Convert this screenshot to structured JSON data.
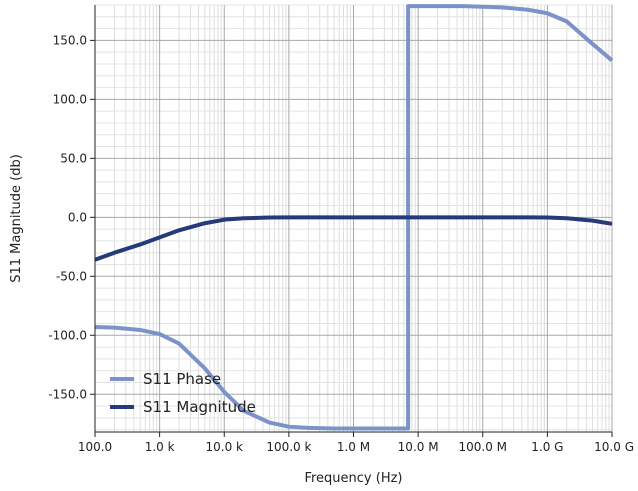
{
  "chart_data": {
    "type": "line",
    "title": "",
    "xlabel": "Frequency (Hz)",
    "ylabel": "S11 Magnitude (db)",
    "xscale": "log",
    "xlim": [
      100,
      10000000000
    ],
    "ylim": [
      -182,
      180
    ],
    "grid": true,
    "legend_position": "bottom-left",
    "x_ticks": [
      {
        "value": 100,
        "label": "100.0"
      },
      {
        "value": 1000,
        "label": "1.0 k"
      },
      {
        "value": 10000,
        "label": "10.0 k"
      },
      {
        "value": 100000,
        "label": "100.0 k"
      },
      {
        "value": 1000000,
        "label": "1.0 M"
      },
      {
        "value": 10000000,
        "label": "10.0 M"
      },
      {
        "value": 100000000,
        "label": "100.0 M"
      },
      {
        "value": 1000000000,
        "label": "1.0 G"
      },
      {
        "value": 10000000000,
        "label": "10.0 G"
      }
    ],
    "y_ticks": [
      {
        "value": 150,
        "label": "150.0"
      },
      {
        "value": 100,
        "label": "100.0"
      },
      {
        "value": 50,
        "label": "50.0"
      },
      {
        "value": 0,
        "label": "0.0"
      },
      {
        "value": -50,
        "label": "-50.0"
      },
      {
        "value": -100,
        "label": "-100.0"
      },
      {
        "value": -150,
        "label": "-150.0"
      }
    ],
    "series": [
      {
        "name": "S11 Phase",
        "color": "#7b93c9",
        "x": [
          100,
          200,
          500,
          1000,
          2000,
          5000,
          10000,
          20000,
          50000,
          100000,
          200000,
          500000,
          1000000,
          2000000,
          5000000,
          7000000,
          7000000,
          10000000,
          20000000,
          50000000,
          100000000,
          200000000,
          500000000,
          1000000000,
          2000000000,
          5000000000,
          10000000000
        ],
        "y": [
          -93,
          -93.5,
          -95.5,
          -99,
          -107,
          -128,
          -148,
          -164,
          -174,
          -177.5,
          -178.5,
          -179,
          -179,
          -179,
          -179,
          -179,
          179,
          179,
          179,
          179,
          178.5,
          178,
          176,
          173,
          166,
          147,
          133
        ]
      },
      {
        "name": "S11 Magnitude",
        "color": "#26397a",
        "x": [
          100,
          200,
          500,
          1000,
          2000,
          5000,
          10000,
          20000,
          50000,
          100000,
          1000000,
          10000000,
          100000000,
          500000000,
          1000000000,
          2000000000,
          5000000000,
          10000000000
        ],
        "y": [
          -36,
          -30,
          -23,
          -17,
          -11,
          -5,
          -2,
          -0.8,
          -0.2,
          0,
          0,
          0,
          0,
          0,
          -0.2,
          -0.8,
          -2.8,
          -5.5
        ]
      }
    ]
  }
}
